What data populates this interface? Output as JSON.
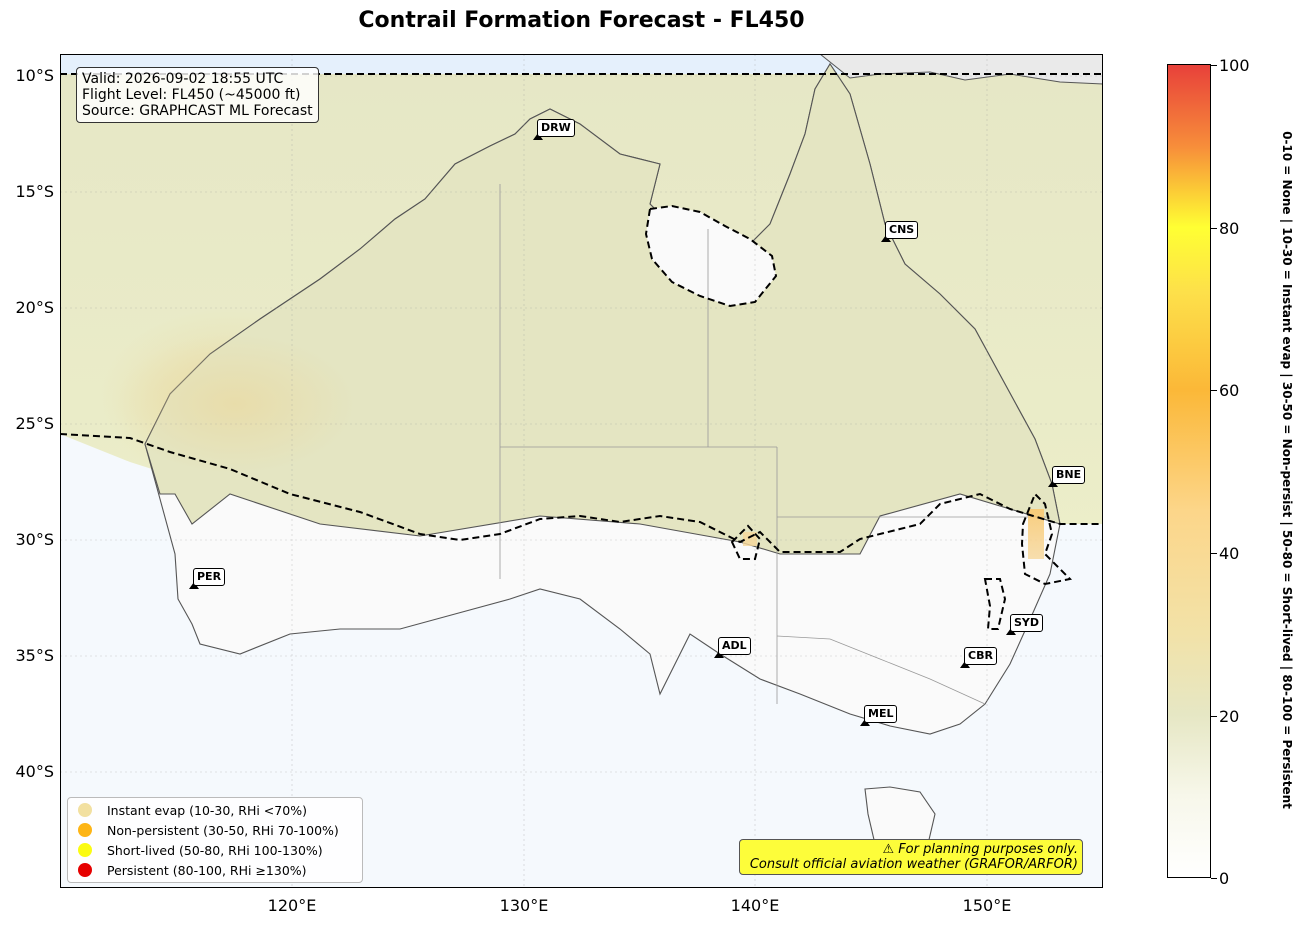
{
  "title": "Contrail Formation Forecast - FL450",
  "info_box": {
    "line1": "Valid: 2026-09-02 18:55 UTC",
    "line2": "Flight Level: FL450 (~45000 ft)",
    "line3": "Source: GRAPHCAST ML Forecast"
  },
  "latitude_labels": [
    "10°S",
    "15°S",
    "20°S",
    "25°S",
    "30°S",
    "35°S",
    "40°S"
  ],
  "longitude_labels": [
    "120°E",
    "130°E",
    "140°E",
    "150°E"
  ],
  "cities": [
    {
      "code": "DRW",
      "lon": 130.8,
      "lat": -12.5
    },
    {
      "code": "CNS",
      "lon": 145.7,
      "lat": -16.9
    },
    {
      "code": "BNE",
      "lon": 153.0,
      "lat": -27.5
    },
    {
      "code": "PER",
      "lon": 115.9,
      "lat": -31.9
    },
    {
      "code": "ADL",
      "lon": 138.6,
      "lat": -34.9
    },
    {
      "code": "SYD",
      "lon": 151.2,
      "lat": -33.9
    },
    {
      "code": "CBR",
      "lon": 149.1,
      "lat": -35.3
    },
    {
      "code": "MEL",
      "lon": 144.9,
      "lat": -37.8
    }
  ],
  "legend": [
    {
      "label": "Instant evap (10-30, RHi <70%)",
      "color": "#f2e0a0"
    },
    {
      "label": "Non-persistent (30-50, RHi 70-100%)",
      "color": "#fdb515"
    },
    {
      "label": "Short-lived (50-80, RHi 100-130%)",
      "color": "#fbfb12"
    },
    {
      "label": "Persistent (80-100, RHi ≥130%)",
      "color": "#e60000"
    }
  ],
  "disclaimer": {
    "line1": "⚠ For planning purposes only.",
    "line2": "Consult official aviation weather (GRAFOR/ARFOR)"
  },
  "colorbar": {
    "ticks": [
      "0",
      "20",
      "40",
      "60",
      "80",
      "100"
    ],
    "label": "0-10 = None  |  10-30 = Instant evap  |  30-50 = Non-persist  |  50-80 = Short-lived  |  80-100 = Persistent"
  },
  "map_extent": {
    "lon_min": 110,
    "lon_max": 155,
    "lat_min": -45,
    "lat_max": -9
  }
}
